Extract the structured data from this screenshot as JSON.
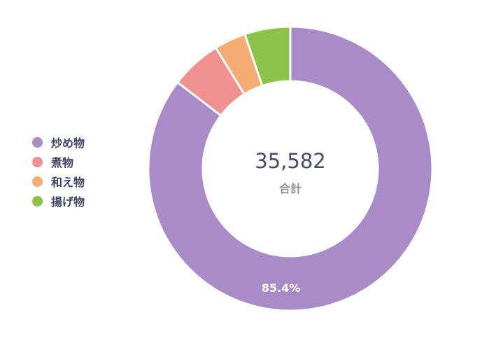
{
  "chart_data": {
    "type": "pie",
    "donut": true,
    "total": "35,582",
    "total_label": "合計",
    "legend_position": "left",
    "slices": [
      {
        "name": "炒め物",
        "percent": 85.4,
        "color": "#a98bc8",
        "label": "85.4%"
      },
      {
        "name": "煮物",
        "percent": 5.8,
        "color": "#f09090",
        "label": ""
      },
      {
        "name": "和え物",
        "percent": 3.6,
        "color": "#f4ac73",
        "label": ""
      },
      {
        "name": "揚げ物",
        "percent": 5.2,
        "color": "#8bc34a",
        "label": ""
      }
    ]
  }
}
